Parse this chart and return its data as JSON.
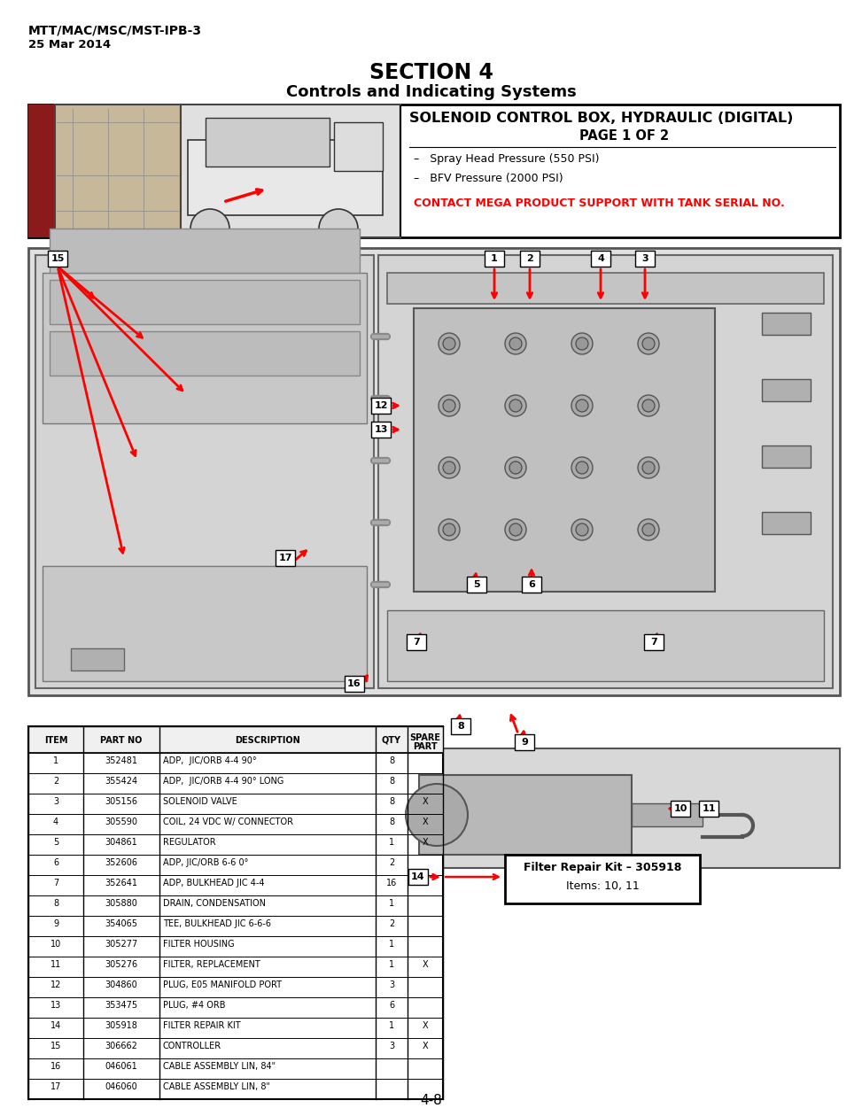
{
  "page_header_line1": "MTT/MAC/MSC/MST-IPB-3",
  "page_header_line2": "25 Mar 2014",
  "section_title": "SECTION 4",
  "section_subtitle": "Controls and Indicating Systems",
  "box_title": "SOLENOID CONTROL BOX, HYDRAULIC (DIGITAL)",
  "box_subtitle": "PAGE 1 OF 2",
  "box_bullets": [
    "Spray Head Pressure (550 PSI)",
    "BFV Pressure (2000 PSI)"
  ],
  "box_contact": "CONTACT MEGA PRODUCT SUPPORT WITH TANK SERIAL NO.",
  "page_footer": "4-8",
  "table_headers": [
    "ITEM",
    "PART NO",
    "DESCRIPTION",
    "QTY",
    "SPARE\nPART"
  ],
  "table_data": [
    [
      "1",
      "352481",
      "ADP,  JIC/ORB 4-4 90°",
      "8",
      ""
    ],
    [
      "2",
      "355424",
      "ADP,  JIC/ORB 4-4 90° LONG",
      "8",
      ""
    ],
    [
      "3",
      "305156",
      "SOLENOID VALVE",
      "8",
      "X"
    ],
    [
      "4",
      "305590",
      "COIL, 24 VDC W/ CONNECTOR",
      "8",
      "X"
    ],
    [
      "5",
      "304861",
      "REGULATOR",
      "1",
      "X"
    ],
    [
      "6",
      "352606",
      "ADP, JIC/ORB 6-6 0°",
      "2",
      ""
    ],
    [
      "7",
      "352641",
      "ADP, BULKHEAD JIC 4-4",
      "16",
      ""
    ],
    [
      "8",
      "305880",
      "DRAIN, CONDENSATION",
      "1",
      ""
    ],
    [
      "9",
      "354065",
      "TEE, BULKHEAD JIC 6-6-6",
      "2",
      ""
    ],
    [
      "10",
      "305277",
      "FILTER HOUSING",
      "1",
      ""
    ],
    [
      "11",
      "305276",
      "FILTER, REPLACEMENT",
      "1",
      "X"
    ],
    [
      "12",
      "304860",
      "PLUG, E05 MANIFOLD PORT",
      "3",
      ""
    ],
    [
      "13",
      "353475",
      "PLUG, #4 ORB",
      "6",
      ""
    ],
    [
      "14",
      "305918",
      "FILTER REPAIR KIT",
      "1",
      "X"
    ],
    [
      "15",
      "306662",
      "CONTROLLER",
      "3",
      "X"
    ],
    [
      "16",
      "046061",
      "CABLE ASSEMBLY LIN, 84\"",
      "",
      ""
    ],
    [
      "17",
      "046060",
      "CABLE ASSEMBLY LIN, 8\"",
      "",
      ""
    ]
  ],
  "bg_color": "#ffffff",
  "red_color": "#cc0000",
  "dark_red": "#8B1A1A",
  "diagram_bg": "#e8e8e8",
  "diagram_inner": "#d0d0d0",
  "diagram_detail": "#b8b8b8"
}
